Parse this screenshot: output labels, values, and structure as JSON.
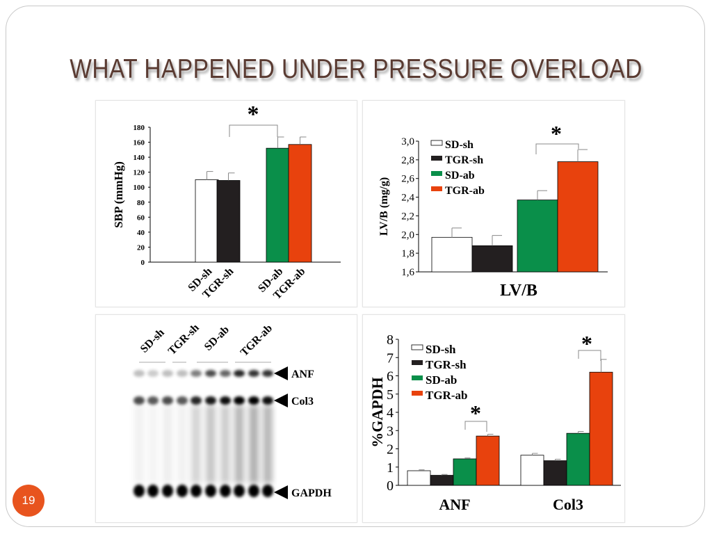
{
  "title": "WHAT HAPPENED UNDER PRESSURE  OVERLOAD",
  "page_number": "19",
  "colors": {
    "SD-sh": "#ffffff",
    "TGR-sh": "#231f20",
    "SD-ab": "#0a8f4a",
    "TGR-ab": "#e8420d",
    "title": "#5a3b32",
    "page_badge": "#e8541e"
  },
  "blot": {
    "lane_labels": [
      "SD-sh",
      "TGR-sh",
      "SD-ab",
      "TGR-ab"
    ],
    "band_labels": [
      "ANF",
      "Col3",
      "GAPDH"
    ]
  },
  "chart_data": [
    {
      "type": "bar",
      "ylabel": "SBP (mmHg)",
      "xlabel": "",
      "ylim": [
        0,
        180
      ],
      "yticks": [
        "0",
        "20",
        "40",
        "60",
        "80",
        "100",
        "120",
        "140",
        "160",
        "180"
      ],
      "categories": [
        "SD-sh",
        "TGR-sh",
        "SD-ab",
        "TGR-ab"
      ],
      "values": [
        110,
        109,
        152,
        157
      ],
      "errors": [
        11,
        10,
        15,
        10
      ],
      "annotations": [
        "*"
      ],
      "legend": "none",
      "grid": false
    },
    {
      "type": "bar",
      "ylabel": "LV/B (mg/g)",
      "xlabel": "LV/B",
      "ylim": [
        1.6,
        3.0
      ],
      "yticks": [
        "1,6",
        "1,8",
        "2,0",
        "2,2",
        "2,4",
        "2,6",
        "2,8",
        "3,0"
      ],
      "series": [
        {
          "name": "SD-sh",
          "values": [
            1.97
          ],
          "errors": [
            0.1
          ]
        },
        {
          "name": "TGR-sh",
          "values": [
            1.88
          ],
          "errors": [
            0.11
          ]
        },
        {
          "name": "SD-ab",
          "values": [
            2.37
          ],
          "errors": [
            0.1
          ]
        },
        {
          "name": "TGR-ab",
          "values": [
            2.78
          ],
          "errors": [
            0.13
          ]
        }
      ],
      "annotations": [
        "*"
      ],
      "legend": "top-left",
      "grid": false
    },
    {
      "type": "bar",
      "ylabel": "%GAPDH",
      "xlabel": "",
      "ylim": [
        0,
        8
      ],
      "yticks": [
        "0",
        "1",
        "2",
        "3",
        "4",
        "5",
        "6",
        "7",
        "8"
      ],
      "categories": [
        "ANF",
        "Col3"
      ],
      "series": [
        {
          "name": "SD-sh",
          "values": [
            0.8,
            1.65
          ],
          "errors": [
            0.05,
            0.1
          ]
        },
        {
          "name": "TGR-sh",
          "values": [
            0.55,
            1.35
          ],
          "errors": [
            0.05,
            0.08
          ]
        },
        {
          "name": "SD-ab",
          "values": [
            1.45,
            2.85
          ],
          "errors": [
            0.05,
            0.1
          ]
        },
        {
          "name": "TGR-ab",
          "values": [
            2.7,
            6.2
          ],
          "errors": [
            0.1,
            0.7
          ]
        }
      ],
      "annotations": [
        "*",
        "*"
      ],
      "legend": "top-left",
      "grid": false
    }
  ]
}
